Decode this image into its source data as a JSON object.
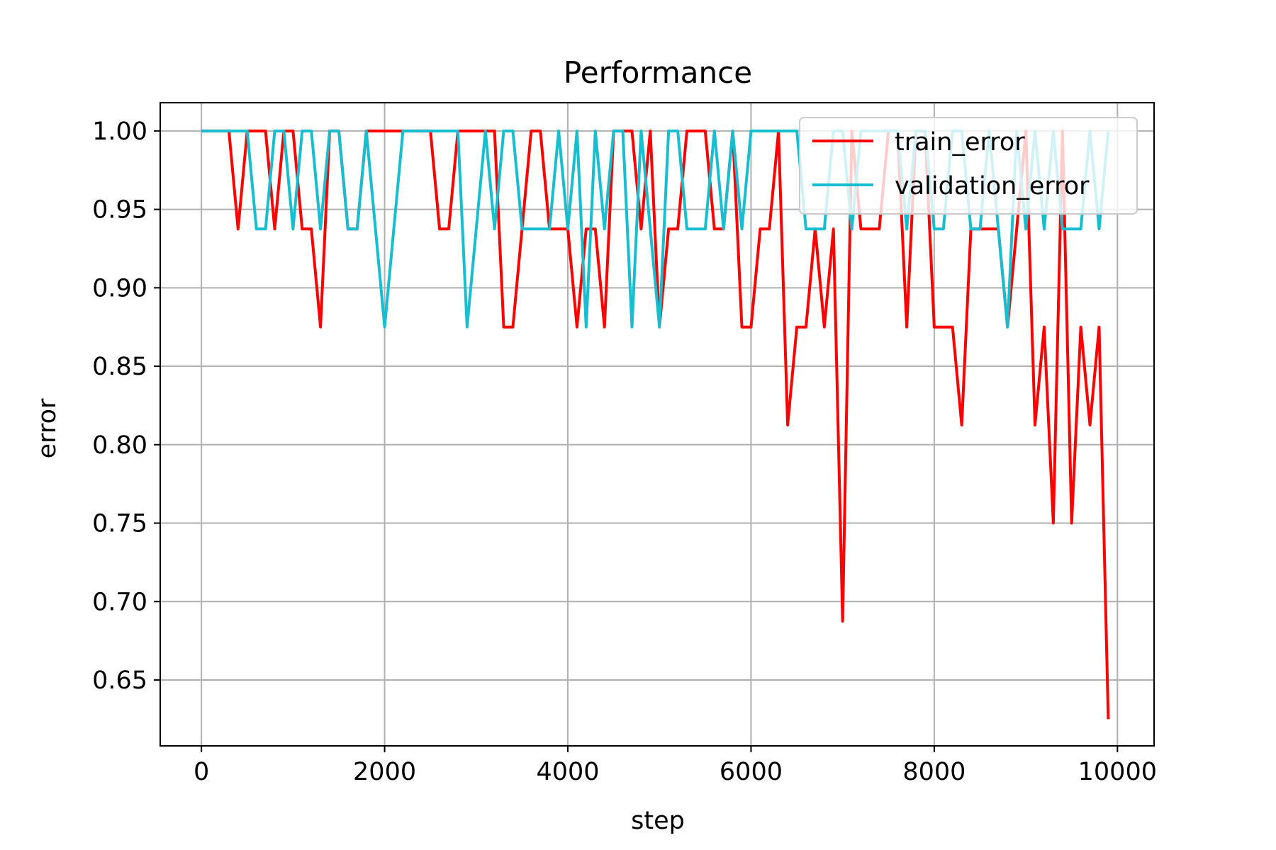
{
  "chart_data": {
    "type": "line",
    "title": "Performance",
    "xlabel": "step",
    "ylabel": "error",
    "xlim": [
      -450,
      10400
    ],
    "ylim": [
      0.608,
      1.018
    ],
    "xticks": [
      0,
      2000,
      4000,
      6000,
      8000,
      10000
    ],
    "xtick_labels": [
      "0",
      "2000",
      "4000",
      "6000",
      "8000",
      "10000"
    ],
    "yticks": [
      0.65,
      0.7,
      0.75,
      0.8,
      0.85,
      0.9,
      0.95,
      1.0
    ],
    "ytick_labels": [
      "0.65",
      "0.70",
      "0.75",
      "0.80",
      "0.85",
      "0.90",
      "0.95",
      "1.00"
    ],
    "grid": true,
    "legend_position": "top-right",
    "x_start": 0,
    "x_step": 100,
    "series": [
      {
        "name": "train_error",
        "color": "#ff0000",
        "values": [
          1,
          1,
          1,
          1,
          0.9375,
          1,
          1,
          1,
          0.9375,
          1,
          1,
          0.9375,
          0.9375,
          0.875,
          1,
          1,
          0.9375,
          0.9375,
          1,
          1,
          1,
          1,
          1,
          1,
          1,
          1,
          0.9375,
          0.9375,
          1,
          1,
          1,
          1,
          1,
          0.875,
          0.875,
          0.9375,
          1,
          1,
          0.9375,
          0.9375,
          0.9375,
          0.875,
          0.9375,
          0.9375,
          0.875,
          1,
          1,
          1,
          0.9375,
          1,
          0.875,
          0.9375,
          0.9375,
          1,
          1,
          1,
          0.9375,
          0.9375,
          1,
          0.875,
          0.875,
          0.9375,
          0.9375,
          1,
          0.8125,
          0.875,
          0.875,
          0.9375,
          0.875,
          0.9375,
          0.6875,
          1,
          0.9375,
          0.9375,
          0.9375,
          1,
          1,
          0.875,
          1,
          1,
          0.875,
          0.875,
          0.875,
          0.8125,
          0.9375,
          0.9375,
          0.9375,
          0.9375,
          0.875,
          0.9375,
          1,
          0.8125,
          0.875,
          0.75,
          1,
          0.75,
          0.875,
          0.8125,
          0.875,
          0.625
        ]
      },
      {
        "name": "validation_error",
        "color": "#17becf",
        "values": [
          1,
          1,
          1,
          1,
          1,
          1,
          0.9375,
          0.9375,
          1,
          1,
          0.9375,
          1,
          1,
          0.9375,
          1,
          1,
          0.9375,
          0.9375,
          1,
          0.9375,
          0.875,
          0.9375,
          1,
          1,
          1,
          1,
          1,
          1,
          1,
          0.875,
          0.9375,
          1,
          0.9375,
          1,
          1,
          0.9375,
          0.9375,
          0.9375,
          0.9375,
          1,
          0.9375,
          1,
          0.875,
          1,
          0.9375,
          1,
          1,
          0.875,
          1,
          0.9375,
          0.875,
          1,
          1,
          0.9375,
          0.9375,
          0.9375,
          1,
          0.9375,
          1,
          0.9375,
          1,
          1,
          1,
          1,
          1,
          1,
          0.9375,
          0.9375,
          0.9375,
          1,
          1,
          0.9375,
          1,
          1,
          1,
          1,
          1,
          0.9375,
          1,
          1,
          0.9375,
          0.9375,
          1,
          1,
          0.9375,
          0.9375,
          1,
          0.9375,
          0.875,
          1,
          0.9375,
          1,
          0.9375,
          1,
          0.9375,
          0.9375,
          0.9375,
          1,
          0.9375,
          1
        ]
      }
    ]
  }
}
